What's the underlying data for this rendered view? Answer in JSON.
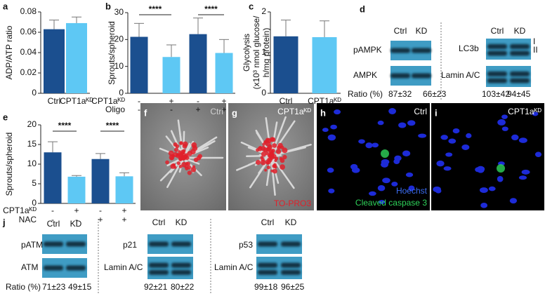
{
  "panel_letters": [
    "a",
    "b",
    "c",
    "d",
    "e",
    "f",
    "g",
    "h",
    "i",
    "j"
  ],
  "chart_data": [
    {
      "type": "bar",
      "y_label": "ADP/ATP ratio",
      "categories": [
        "Ctrl",
        "CPT1aᴷᴰ"
      ],
      "values": [
        0.063,
        0.069
      ],
      "errors": [
        0.009,
        0.006
      ],
      "colors": [
        "#1b4f8f",
        "#5ec8f4"
      ],
      "ylim": [
        0,
        0.08
      ],
      "yticks": [
        0,
        0.02,
        0.04,
        0.06,
        0.08
      ]
    },
    {
      "type": "bar",
      "y_label": "Sprouts/spheroid",
      "conditions": [
        {
          "name": "CPT1aᴷᴰ",
          "values": [
            "-",
            "+",
            "-",
            "+"
          ]
        },
        {
          "name": "Oligo",
          "values": [
            "-",
            "-",
            "+",
            "+"
          ]
        }
      ],
      "values": [
        21,
        13.5,
        22,
        15
      ],
      "errors": [
        5,
        4.5,
        6,
        5
      ],
      "colors": [
        "#1b4f8f",
        "#5ec8f4",
        "#1b4f8f",
        "#5ec8f4"
      ],
      "annotations": [
        "****",
        "****"
      ],
      "ylim": [
        0,
        30
      ],
      "yticks": [
        0,
        10,
        20,
        30
      ]
    },
    {
      "type": "bar",
      "y_label": [
        "Glycolysis",
        "(x10³ nmol glucose/",
        "h/mg protein)"
      ],
      "categories": [
        "Ctrl",
        "CPT1aᴷᴰ"
      ],
      "values": [
        1.4,
        1.38
      ],
      "errors": [
        0.4,
        0.4
      ],
      "colors": [
        "#1b4f8f",
        "#5ec8f4"
      ],
      "ylim": [
        0,
        2
      ],
      "yticks": [
        0,
        1,
        2
      ]
    },
    {
      "type": "bar",
      "y_label": "Sprouts/spheroid",
      "conditions": [
        {
          "name": "CPT1aᴷᴰ",
          "values": [
            "-",
            "+",
            "-",
            "+"
          ]
        },
        {
          "name": "NAC",
          "values": [
            "-",
            "-",
            "+",
            "+"
          ]
        }
      ],
      "values": [
        13,
        6.8,
        11.3,
        6.9
      ],
      "errors": [
        2.7,
        0.3,
        1.4,
        0.9
      ],
      "colors": [
        "#1b4f8f",
        "#5ec8f4",
        "#1b4f8f",
        "#5ec8f4"
      ],
      "annotations": [
        "****",
        "****"
      ],
      "ylim": [
        0,
        20
      ],
      "yticks": [
        0,
        5,
        10,
        15,
        20
      ]
    }
  ],
  "blots": [
    {
      "lanes": [
        "Ctrl",
        "KD"
      ],
      "bands": [
        "pAMPK",
        "AMPK"
      ],
      "ratio_label": "Ratio (%)",
      "ratios": [
        "87±32",
        "66±23"
      ]
    },
    {
      "lanes": [
        "Ctrl",
        "KD"
      ],
      "bands": [
        "LC3b",
        "Lamin A/C"
      ],
      "forms": [
        "I",
        "II"
      ],
      "ratios": [
        "103±42",
        "94±45"
      ]
    },
    {
      "lanes": [
        "Ctrl",
        "KD"
      ],
      "bands": [
        "pATM",
        "ATM"
      ],
      "ratio_label": "Ratio (%)",
      "ratios": [
        "71±23",
        "49±15"
      ]
    },
    {
      "lanes": [
        "Ctrl",
        "KD"
      ],
      "bands": [
        "p21",
        "Lamin A/C"
      ],
      "ratios": [
        "92±21",
        "80±22"
      ]
    },
    {
      "lanes": [
        "Ctrl",
        "KD"
      ],
      "bands": [
        "p53",
        "Lamin A/C"
      ],
      "ratios": [
        "99±18",
        "96±25"
      ]
    }
  ],
  "micrographs": [
    {
      "condition": "Ctrl"
    },
    {
      "condition": "CPT1aᴷᴰ",
      "stain": "TO-PRO3"
    },
    {
      "condition": "Ctrl",
      "stains": [
        "Hoechst",
        "Cleaved caspase 3"
      ]
    },
    {
      "condition": "CPT1aᴷᴰ"
    }
  ]
}
